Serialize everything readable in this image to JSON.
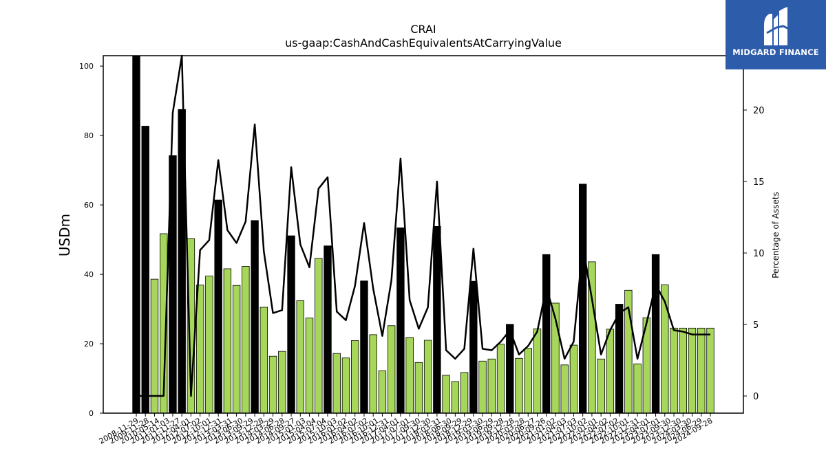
{
  "chart_data": {
    "type": "bar",
    "title": "CRAI",
    "subtitle": "us-gaap:CashAndCashEquivalentsAtCarryingValue",
    "ylabel": "USDm",
    "y2label": "Percentage of Assets",
    "ylim": [
      0,
      103
    ],
    "y2lim": [
      -1.2,
      23.8
    ],
    "yticks": [
      0,
      20,
      40,
      60,
      80,
      100
    ],
    "y2ticks": [
      0,
      5,
      10,
      15,
      20
    ],
    "categories": [
      "2008-11-29",
      "2009-02-21",
      "2009-05-16",
      "2009-08-08",
      "2009-11-28",
      "2010-03-27",
      "2010-06-19",
      "2010-09-11",
      "2010-11-27",
      "2011-04-02",
      "2011-06-25",
      "2011-09-17",
      "2011-12-31",
      "2012-03-24",
      "2012-06-16",
      "2012-09-08",
      "2012-12-29",
      "2013-03-23",
      "2013-06-15",
      "2013-09-07",
      "2013-12-28",
      "2014-03-29",
      "2014-06-21",
      "2014-09-13",
      "2015-01-03",
      "2015-04-04",
      "2015-07-04",
      "2015-10-03",
      "2016-01-02",
      "2016-04-02",
      "2016-07-02",
      "2016-10-01",
      "2016-12-31",
      "2017-04-01",
      "2017-07-01",
      "2017-09-30",
      "2017-12-30",
      "2018-03-31",
      "2018-06-30",
      "2018-09-29",
      "2018-12-29",
      "2019-03-30",
      "2019-06-29",
      "2019-09-28",
      "2019-12-28",
      "2020-03-28",
      "2020-06-27",
      "2020-09-26",
      "2021-01-02",
      "2021-04-03",
      "2021-07-03",
      "2021-10-02",
      "2022-01-01",
      "2022-04-02",
      "2022-07-02",
      "2022-10-01",
      "2022-12-31",
      "2023-04-01",
      "2023-07-01",
      "2023-09-30",
      "2023-12-30",
      "2024-03-30",
      "2024-06-29",
      "2024-09-28"
    ],
    "tick_labels": [
      "2008-11-29",
      "2009-11-28",
      "2010-05-14",
      "2011-01-03",
      "2011-11-27",
      "2012-04-01",
      "2012-07-02",
      "2012-10-01",
      "2012-12-31",
      "2013-03-31",
      "2013-06-30",
      "2013-09-29",
      "2013-12-28",
      "2014-03-29",
      "2014-06-28",
      "2014-09-27",
      "2015-01-03",
      "2015-04-04",
      "2015-07-04",
      "2015-10-03",
      "2016-01-02",
      "2016-04-02",
      "2016-07-02",
      "2016-10-01",
      "2016-12-31",
      "2017-04-01",
      "2017-07-01",
      "2017-09-30",
      "2017-12-30",
      "2018-03-31",
      "2018-06-30",
      "2018-09-29",
      "2018-12-29",
      "2019-03-30",
      "2019-06-29",
      "2019-09-28",
      "2019-12-28",
      "2020-03-28",
      "2020-06-27",
      "2020-09-26",
      "2021-01-02",
      "2021-04-03",
      "2021-07-03",
      "2021-10-02",
      "2022-01-01",
      "2022-04-02",
      "2022-07-02",
      "2022-10-01",
      "2022-12-31",
      "2023-04-01",
      "2023-07-01",
      "2023-09-30",
      "2023-12-30",
      "2024-03-30",
      "2024-06-29",
      "2024-09-28"
    ],
    "series": [
      {
        "name": "Cash and Cash Equivalents",
        "axis": "left",
        "values": [
          103,
          82.7,
          38.6,
          51.7,
          74.2,
          87.5,
          50.3,
          36.9,
          39.5,
          61.4,
          41.6,
          36.8,
          42.3,
          55.5,
          30.5,
          16.4,
          17.8,
          51.1,
          32.4,
          27.4,
          44.6,
          48.2,
          17.2,
          15.9,
          20.9,
          38.1,
          22.6,
          12.2,
          25.2,
          53.4,
          21.8,
          14.6,
          21.0,
          53.8,
          10.9,
          9.1,
          11.7,
          38.0,
          15.0,
          15.6,
          19.9,
          25.6,
          15.8,
          18.7,
          24.3,
          45.7,
          31.7,
          13.9,
          19.6,
          66.0,
          43.6,
          15.6,
          24.2,
          31.4,
          35.4,
          14.2,
          27.5,
          45.7,
          37.0,
          24.5,
          24.5,
          24.5,
          24.5,
          24.5
        ],
        "highlight": [
          true,
          true,
          false,
          false,
          true,
          true,
          false,
          false,
          false,
          true,
          false,
          false,
          false,
          true,
          false,
          false,
          false,
          true,
          false,
          false,
          false,
          true,
          false,
          false,
          false,
          true,
          false,
          false,
          false,
          true,
          false,
          false,
          false,
          true,
          false,
          false,
          false,
          true,
          false,
          false,
          false,
          true,
          false,
          false,
          false,
          true,
          false,
          false,
          false,
          true,
          false,
          false,
          false,
          true,
          false,
          false,
          false,
          true,
          false,
          false,
          false,
          false,
          false,
          false
        ]
      },
      {
        "name": "Percentage of Assets",
        "axis": "right",
        "type": "line",
        "values": [
          0,
          0,
          0,
          0,
          19.8,
          23.8,
          0,
          10.2,
          10.9,
          16.5,
          11.6,
          10.7,
          12.2,
          19.0,
          10.1,
          5.8,
          6.0,
          16.0,
          10.6,
          9.0,
          14.5,
          15.3,
          5.9,
          5.3,
          7.7,
          12.1,
          7.5,
          4.2,
          8.1,
          16.6,
          6.7,
          4.7,
          6.2,
          15.0,
          3.2,
          2.6,
          3.3,
          10.3,
          3.3,
          3.2,
          3.8,
          4.6,
          2.9,
          3.5,
          4.5,
          7.6,
          5.4,
          2.6,
          3.8,
          10.5,
          6.8,
          2.9,
          4.6,
          5.8,
          6.2,
          2.6,
          5.1,
          7.8,
          6.6,
          4.6,
          4.5,
          4.3,
          4.3,
          4.3
        ]
      }
    ],
    "colors": {
      "bar": "#a6d65a",
      "bar_highlight": "#000000",
      "line": "#000000"
    },
    "grid": false
  },
  "branding": {
    "name": "MIDGARD FINANCE",
    "bg_color": "#2d5cab"
  }
}
